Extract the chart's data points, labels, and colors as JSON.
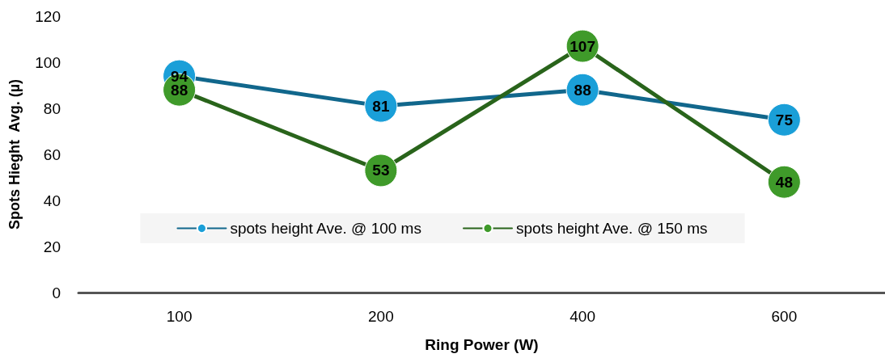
{
  "chart_data": {
    "type": "line",
    "xlabel": "Ring Power (W)",
    "ylabel": "Spots Hieght  Avg. (µ)",
    "categories": [
      "100",
      "200",
      "400",
      "600"
    ],
    "series": [
      {
        "name": "spots height Ave. @ 100 ms",
        "color": "#1a9fd8",
        "values": [
          94,
          81,
          88,
          75
        ]
      },
      {
        "name": "spots height Ave. @ 150 ms",
        "color": "#3f9a2a",
        "values": [
          88,
          53,
          107,
          48
        ]
      }
    ],
    "ylim": [
      0,
      120
    ],
    "yticks": [
      0,
      20,
      40,
      60,
      80,
      100,
      120
    ],
    "grid": false,
    "legend": "bottom",
    "marker": "circle",
    "line_style": "solid",
    "data_labels": true
  }
}
